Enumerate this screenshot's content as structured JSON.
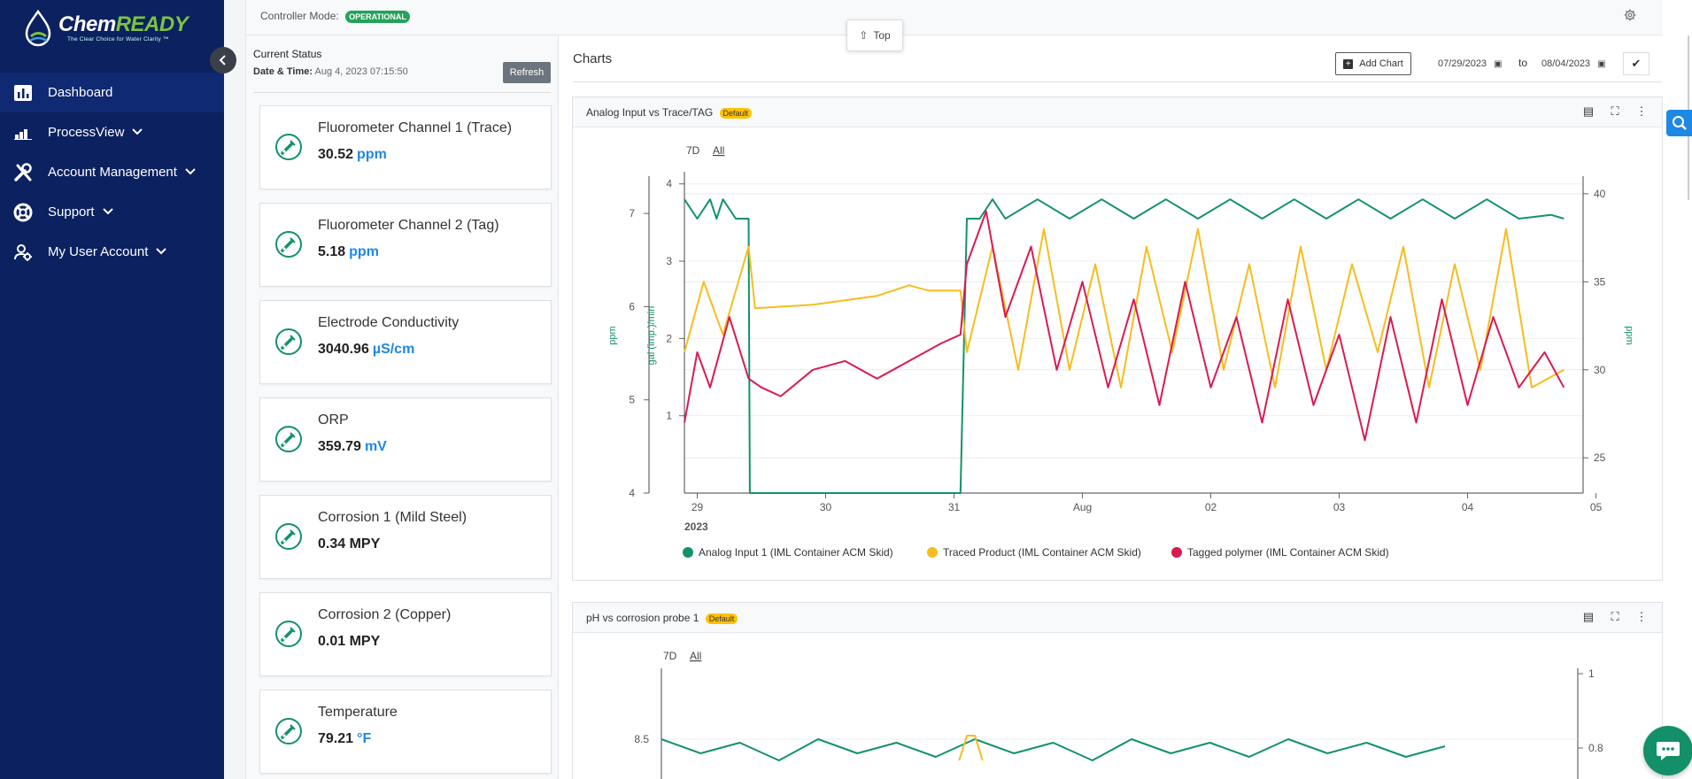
{
  "brand": {
    "name_part1": "Chem",
    "name_part2": "READY",
    "tagline": "The Clear Choice for Water Clarity ™"
  },
  "sidebar": {
    "items": [
      {
        "label": "Dashboard",
        "icon": "bar-chart-icon",
        "active": true
      },
      {
        "label": "ProcessView",
        "icon": "stair-chart-icon",
        "has_menu": true
      },
      {
        "label": "Account Management",
        "icon": "tools-icon",
        "has_menu": true
      },
      {
        "label": "Support",
        "icon": "lifebuoy-icon",
        "has_menu": true
      },
      {
        "label": "My User Account",
        "icon": "user-gear-icon",
        "has_menu": true
      }
    ]
  },
  "controller": {
    "label": "Controller Mode:",
    "mode": "OPERATIONAL"
  },
  "top_button": {
    "label": "Top"
  },
  "status": {
    "heading": "Current Status",
    "date_label": "Date & Time:",
    "date_value": "Aug 4, 2023 07:15:50",
    "refresh_label": "Refresh",
    "cards": [
      {
        "title": "Fluorometer Channel 1 (Trace)",
        "value": "30.52",
        "unit": "ppm"
      },
      {
        "title": "Fluorometer Channel 2 (Tag)",
        "value": "5.18",
        "unit": "ppm"
      },
      {
        "title": "Electrode Conductivity",
        "value": "3040.96",
        "unit": "µS/cm"
      },
      {
        "title": "ORP",
        "value": "359.79",
        "unit": "mV"
      },
      {
        "title": "Corrosion 1 (Mild Steel)",
        "value": "0.34 MPY",
        "unit": ""
      },
      {
        "title": "Corrosion 2 (Copper)",
        "value": "0.01 MPY",
        "unit": ""
      },
      {
        "title": "Temperature",
        "value": "79.21",
        "unit": "°F"
      }
    ]
  },
  "charts_header": {
    "title": "Charts",
    "add_chart_label": "Add Chart",
    "date_from": "07/29/2023",
    "date_to_label": "to",
    "date_to": "08/04/2023"
  },
  "panels": [
    {
      "title": "Analog Input vs Trace/TAG",
      "badge": "Default"
    },
    {
      "title": "pH vs corrosion probe 1",
      "badge": "Default"
    }
  ],
  "colors": {
    "green": "#12926a",
    "yellow": "#f5bd1f",
    "red": "#d81b50",
    "blue": "#1e88e5",
    "navy": "#0b2160"
  },
  "chart_data": [
    {
      "type": "line",
      "title": "Analog Input vs Trace/TAG",
      "range_buttons": [
        "7D",
        "All"
      ],
      "x_ticks": [
        "29",
        "30",
        "31",
        "Aug",
        "02",
        "03",
        "04",
        "05"
      ],
      "year_label": "2023",
      "axes": {
        "left_outer": {
          "label": "ppm",
          "ticks": [
            "4",
            "5",
            "6",
            "7"
          ],
          "range": [
            4,
            7.4
          ]
        },
        "left_inner": {
          "label": "gal (imp.)/min",
          "ticks": [
            "1",
            "2",
            "3",
            "4"
          ],
          "range": [
            0,
            4.1
          ]
        },
        "right": {
          "label": "ppm",
          "ticks": [
            "25",
            "30",
            "35",
            "40"
          ],
          "range": [
            23,
            41
          ]
        }
      },
      "grid": true,
      "legend_position": "bottom",
      "series": [
        {
          "name": "Analog Input 1 (IML Container ACM Skid)",
          "color": "#12926a",
          "axis": "left_inner",
          "x": [
            0.0,
            0.02,
            0.04,
            0.05,
            0.06,
            0.08,
            0.1,
            0.102,
            0.2,
            0.3,
            0.4,
            0.43,
            0.44,
            0.46,
            0.48,
            0.5,
            0.55,
            0.6,
            0.65,
            0.7,
            0.75,
            0.8,
            0.85,
            0.9,
            0.95,
            1.0,
            1.05,
            1.1,
            1.15,
            1.2,
            1.25,
            1.3,
            1.35,
            1.37
          ],
          "y": [
            3.8,
            3.55,
            3.8,
            3.55,
            3.8,
            3.55,
            3.55,
            0.0,
            0.0,
            0.0,
            0.0,
            0.0,
            3.55,
            3.55,
            3.8,
            3.55,
            3.8,
            3.55,
            3.8,
            3.55,
            3.8,
            3.55,
            3.8,
            3.55,
            3.8,
            3.55,
            3.8,
            3.55,
            3.8,
            3.55,
            3.8,
            3.55,
            3.6,
            3.55
          ]
        },
        {
          "name": "Traced Product (IML Container ACM Skid)",
          "color": "#f5bd1f",
          "axis": "right",
          "x": [
            0.0,
            0.03,
            0.06,
            0.1,
            0.11,
            0.2,
            0.3,
            0.35,
            0.38,
            0.43,
            0.44,
            0.48,
            0.52,
            0.56,
            0.6,
            0.64,
            0.68,
            0.72,
            0.76,
            0.8,
            0.84,
            0.88,
            0.92,
            0.96,
            1.0,
            1.04,
            1.08,
            1.12,
            1.16,
            1.2,
            1.24,
            1.28,
            1.32,
            1.37
          ],
          "y": [
            31,
            35,
            32,
            37,
            33.5,
            33.7,
            34.2,
            34.8,
            34.5,
            34.5,
            31,
            37,
            30,
            38,
            30,
            36,
            29,
            37,
            31,
            38,
            30,
            36,
            29,
            37,
            30,
            36,
            31,
            37,
            29,
            36,
            30,
            38,
            29,
            30
          ]
        },
        {
          "name": "Tagged polymer (IML Container ACM Skid)",
          "color": "#d81b50",
          "axis": "right",
          "x": [
            0.0,
            0.02,
            0.04,
            0.07,
            0.1,
            0.12,
            0.15,
            0.2,
            0.25,
            0.3,
            0.35,
            0.4,
            0.43,
            0.44,
            0.47,
            0.5,
            0.54,
            0.58,
            0.62,
            0.66,
            0.7,
            0.74,
            0.78,
            0.82,
            0.86,
            0.9,
            0.94,
            0.98,
            1.02,
            1.06,
            1.1,
            1.14,
            1.18,
            1.22,
            1.26,
            1.3,
            1.34,
            1.37
          ],
          "y": [
            27,
            31,
            29,
            33,
            29.5,
            29,
            28.5,
            30,
            30.5,
            29.5,
            30.5,
            31.5,
            32,
            36,
            39,
            33,
            37,
            30,
            35,
            29,
            34,
            28,
            35,
            29,
            33,
            27,
            34,
            28,
            32,
            26,
            33,
            27,
            34,
            28,
            33,
            29,
            31,
            29
          ]
        }
      ]
    },
    {
      "type": "line",
      "title": "pH vs corrosion probe 1",
      "range_buttons": [
        "7D",
        "All"
      ],
      "axes": {
        "left": {
          "ticks": [
            "8.5"
          ]
        },
        "right": {
          "ticks": [
            "1",
            "0.8"
          ]
        }
      },
      "series": [
        {
          "color": "#12926a",
          "x": [
            0.0,
            0.05,
            0.1,
            0.15,
            0.2,
            0.25,
            0.3,
            0.35,
            0.4,
            0.45,
            0.5,
            0.55,
            0.6,
            0.65,
            0.7,
            0.75,
            0.8,
            0.85,
            0.9,
            0.95,
            1.0
          ],
          "y": [
            8.5,
            8.3,
            8.45,
            8.2,
            8.5,
            8.3,
            8.45,
            8.25,
            8.5,
            8.3,
            8.45,
            8.2,
            8.5,
            8.3,
            8.45,
            8.25,
            8.5,
            8.3,
            8.45,
            8.25,
            8.4
          ]
        },
        {
          "color": "#f5bd1f",
          "x": [
            0.38,
            0.39,
            0.4,
            0.41
          ],
          "y": [
            8.2,
            8.55,
            8.55,
            8.2
          ]
        }
      ]
    }
  ]
}
